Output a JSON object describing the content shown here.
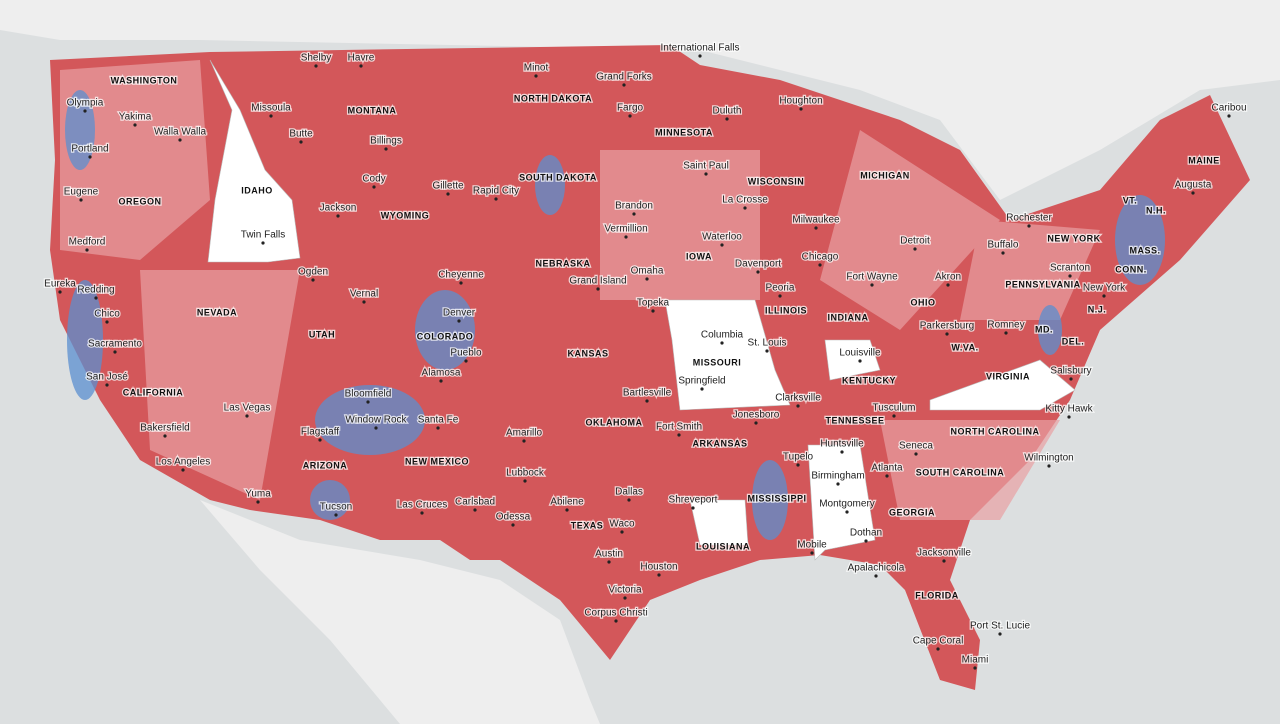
{
  "states": [
    "WASHINGTON",
    "OREGON",
    "IDAHO",
    "MONTANA",
    "NORTH DAKOTA",
    "SOUTH DAKOTA",
    "WYOMING",
    "NEVADA",
    "UTAH",
    "COLORADO",
    "NEBRASKA",
    "KANSAS",
    "MINNESOTA",
    "IOWA",
    "MISSOURI",
    "WISCONSIN",
    "MICHIGAN",
    "ILLINOIS",
    "INDIANA",
    "OHIO",
    "KENTUCKY",
    "TENNESSEE",
    "ARKANSAS",
    "OKLAHOMA",
    "TEXAS",
    "NEW MEXICO",
    "ARIZONA",
    "CALIFORNIA",
    "LOUISIANA",
    "MISSISSIPPI",
    "GEORGIA",
    "FLORIDA",
    "SOUTH CAROLINA",
    "NORTH CAROLINA",
    "VIRGINIA",
    "W.VA.",
    "PENNSYLVANIA",
    "NEW YORK",
    "MAINE",
    "VT.",
    "N.H.",
    "MASS.",
    "CONN.",
    "N.J.",
    "DEL.",
    "MD."
  ],
  "cities": [
    "International Falls",
    "Shelby",
    "Havre",
    "Minot",
    "Grand Forks",
    "Olympia",
    "Yakima",
    "Walla Walla",
    "Missoula",
    "Butte",
    "Fargo",
    "Duluth",
    "Houghton",
    "Caribou",
    "Portland",
    "Billings",
    "Saint Paul",
    "Augusta",
    "Eugene",
    "Cody",
    "Gillette",
    "Rapid City",
    "Jackson",
    "Brandon",
    "La Crosse",
    "Milwaukee",
    "Rochester",
    "Medford",
    "Twin Falls",
    "Vermillion",
    "Waterloo",
    "Detroit",
    "Buffalo",
    "Chicago",
    "Davenport",
    "Ogden",
    "Cheyenne",
    "Omaha",
    "Grand Island",
    "Fort Wayne",
    "Akron",
    "Scranton",
    "Eureka",
    "Redding",
    "Vernal",
    "Peoria",
    "New York",
    "Chico",
    "Denver",
    "Topeka",
    "Columbia",
    "Sacramento",
    "Pueblo",
    "St. Louis",
    "Parkersburg",
    "Romney",
    "Louisville",
    "San José",
    "Alamosa",
    "Springfield",
    "Salisbury",
    "Bartlesville",
    "Las Vegas",
    "Bloomfield",
    "Clarksville",
    "Tusculum",
    "Kitty Hawk",
    "Window Rock",
    "Santa Fe",
    "Jonesboro",
    "Bakersfield",
    "Flagstaff",
    "Amarillo",
    "Fort Smith",
    "Huntsville",
    "Seneca",
    "Los Angeles",
    "Tupelo",
    "Atlanta",
    "Wilmington",
    "Lubbock",
    "Birmingham",
    "Yuma",
    "Tucson",
    "Carlsbad",
    "Abilene",
    "Dallas",
    "Shreveport",
    "Montgomery",
    "Las Cruces",
    "Odessa",
    "Waco",
    "Dothan",
    "Mobile",
    "Jacksonville",
    "Austin",
    "Houston",
    "Apalachicola",
    "Victoria",
    "Corpus Christi",
    "Port St. Lucie",
    "Cape Coral",
    "Miami"
  ]
}
